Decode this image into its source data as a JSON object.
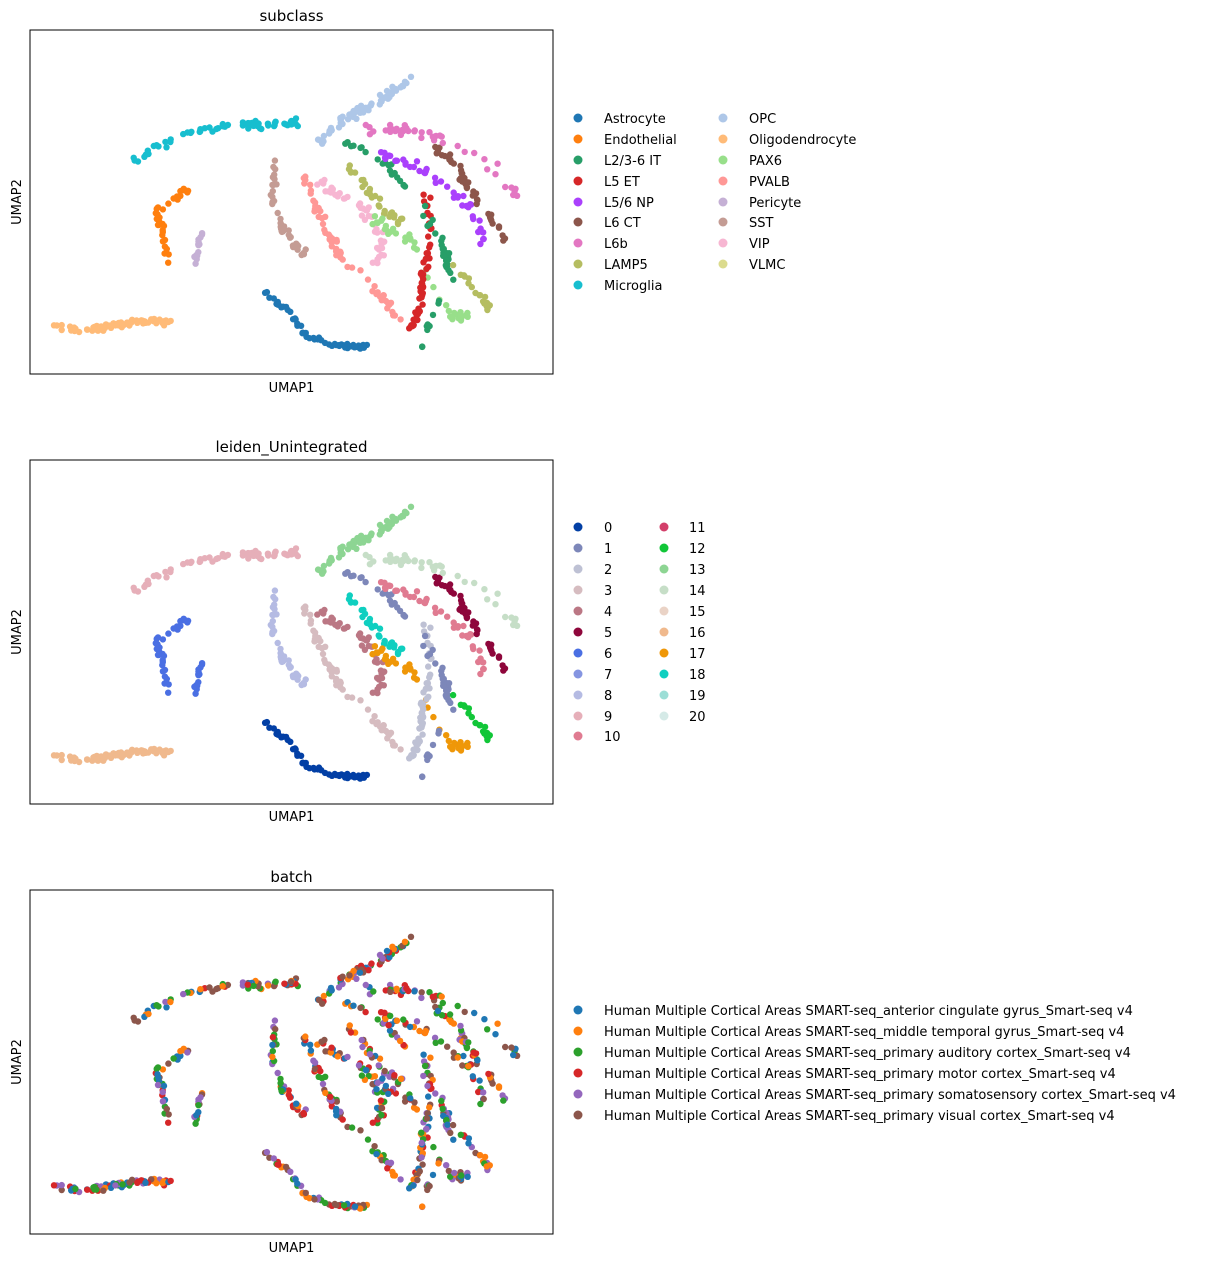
{
  "chart_data": [
    {
      "type": "scatter",
      "title": "subclass",
      "xlabel": "UMAP1",
      "ylabel": "UMAP2",
      "ticks": "none",
      "grid": false,
      "legend_placement": "right",
      "legend_columns": 2,
      "categories": [
        {
          "name": "Astrocyte",
          "color": "#1f77b4"
        },
        {
          "name": "Endothelial",
          "color": "#ff7f0e"
        },
        {
          "name": "L2/3-6 IT",
          "color": "#279e68"
        },
        {
          "name": "L5 ET",
          "color": "#d62728"
        },
        {
          "name": "L5/6 NP",
          "color": "#aa40fc"
        },
        {
          "name": "L6 CT",
          "color": "#8c564b"
        },
        {
          "name": "L6b",
          "color": "#e377c2"
        },
        {
          "name": "LAMP5",
          "color": "#b5bd61"
        },
        {
          "name": "Microglia",
          "color": "#17becf"
        },
        {
          "name": "OPC",
          "color": "#aec7e8"
        },
        {
          "name": "Oligodendrocyte",
          "color": "#ffbb78"
        },
        {
          "name": "PAX6",
          "color": "#98df8a"
        },
        {
          "name": "PVALB",
          "color": "#ff9896"
        },
        {
          "name": "Pericyte",
          "color": "#c5b0d5"
        },
        {
          "name": "SST",
          "color": "#c49c94"
        },
        {
          "name": "VIP",
          "color": "#f7b6d2"
        },
        {
          "name": "VLMC",
          "color": "#dbdb8d"
        }
      ]
    },
    {
      "type": "scatter",
      "title": "leiden_Unintegrated",
      "xlabel": "UMAP1",
      "ylabel": "UMAP2",
      "ticks": "none",
      "grid": false,
      "legend_placement": "right",
      "legend_columns": 2,
      "categories": [
        {
          "name": "0",
          "color": "#023fa5"
        },
        {
          "name": "1",
          "color": "#7d87b9"
        },
        {
          "name": "2",
          "color": "#bec1d4"
        },
        {
          "name": "3",
          "color": "#d6bcc0"
        },
        {
          "name": "4",
          "color": "#bb7784"
        },
        {
          "name": "5",
          "color": "#8e063b"
        },
        {
          "name": "6",
          "color": "#4a6fe3"
        },
        {
          "name": "7",
          "color": "#8595e1"
        },
        {
          "name": "8",
          "color": "#b5bbe3"
        },
        {
          "name": "9",
          "color": "#e6afb9"
        },
        {
          "name": "10",
          "color": "#e07b91"
        },
        {
          "name": "11",
          "color": "#d33f6a"
        },
        {
          "name": "12",
          "color": "#11c638"
        },
        {
          "name": "13",
          "color": "#8dd593"
        },
        {
          "name": "14",
          "color": "#c6dec7"
        },
        {
          "name": "15",
          "color": "#ead3c6"
        },
        {
          "name": "16",
          "color": "#f0b98d"
        },
        {
          "name": "17",
          "color": "#ef9708"
        },
        {
          "name": "18",
          "color": "#0fcfc0"
        },
        {
          "name": "19",
          "color": "#9cded6"
        },
        {
          "name": "20",
          "color": "#d5eae7"
        }
      ]
    },
    {
      "type": "scatter",
      "title": "batch",
      "xlabel": "UMAP1",
      "ylabel": "UMAP2",
      "ticks": "none",
      "grid": false,
      "legend_placement": "right",
      "legend_columns": 1,
      "categories": [
        {
          "name": "Human Multiple Cortical Areas SMART-seq_anterior cingulate gyrus_Smart-seq v4",
          "color": "#1f77b4"
        },
        {
          "name": "Human Multiple Cortical Areas SMART-seq_middle temporal gyrus_Smart-seq v4",
          "color": "#ff7f0e"
        },
        {
          "name": "Human Multiple Cortical Areas SMART-seq_primary auditory cortex_Smart-seq v4",
          "color": "#2ca02c"
        },
        {
          "name": "Human Multiple Cortical Areas SMART-seq_primary motor cortex_Smart-seq v4",
          "color": "#d62728"
        },
        {
          "name": "Human Multiple Cortical Areas SMART-seq_primary somatosensory cortex_Smart-seq v4",
          "color": "#9467bd"
        },
        {
          "name": "Human Multiple Cortical Areas SMART-seq_primary visual cortex_Smart-seq v4",
          "color": "#8c564b"
        }
      ]
    }
  ]
}
